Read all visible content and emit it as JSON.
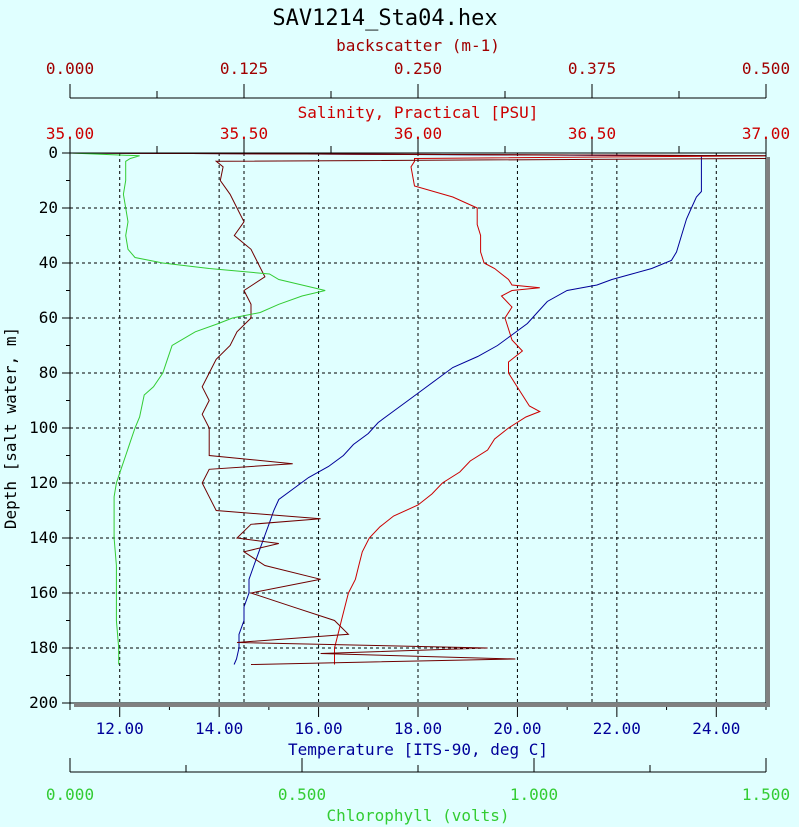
{
  "chart_data": {
    "type": "line",
    "title": "SAV1214_Sta04.hex",
    "axes": {
      "depth": {
        "label": "Depth [salt water, m]",
        "range": [
          0,
          200
        ],
        "ticks": [
          "0",
          "20",
          "40",
          "60",
          "80",
          "100",
          "120",
          "140",
          "160",
          "180",
          "200"
        ],
        "color": "#000000",
        "inverted": true
      },
      "backscatter": {
        "label": "backscatter (m-1)",
        "range": [
          0,
          0.5
        ],
        "ticks": [
          "0.000",
          "0.125",
          "0.250",
          "0.375",
          "0.500"
        ],
        "color": "#a00000",
        "position": "top-outer"
      },
      "salinity": {
        "label": "Salinity, Practical [PSU]",
        "range": [
          35,
          37
        ],
        "ticks": [
          "35.00",
          "35.50",
          "36.00",
          "36.50",
          "37.00"
        ],
        "color": "#cc0000",
        "position": "top-inner"
      },
      "temperature": {
        "label": "Temperature [ITS-90, deg C]",
        "range": [
          11,
          25
        ],
        "ticks": [
          "12.00",
          "14.00",
          "16.00",
          "18.00",
          "20.00",
          "22.00",
          "24.00"
        ],
        "color": "#000099",
        "position": "bottom-inner"
      },
      "chlorophyll": {
        "label": "Chlorophyll (volts)",
        "range": [
          0,
          1.5
        ],
        "ticks": [
          "0.000",
          "0.500",
          "1.000",
          "1.500"
        ],
        "color": "#33cc33",
        "position": "bottom-outer"
      }
    },
    "grid": true,
    "series": [
      {
        "axis": "temperature",
        "color": "#000099",
        "depth": [
          0,
          1,
          2,
          3,
          14,
          16,
          20,
          24,
          30,
          36,
          39,
          42,
          44,
          46,
          48,
          50,
          54,
          58,
          62,
          66,
          70,
          74,
          78,
          82,
          86,
          90,
          94,
          98,
          102,
          106,
          110,
          114,
          118,
          122,
          126,
          130,
          135,
          140,
          145,
          150,
          155,
          160,
          165,
          170,
          175,
          180,
          184,
          186
        ],
        "values": [
          11.1,
          23.7,
          23.7,
          23.7,
          23.7,
          23.6,
          23.5,
          23.4,
          23.3,
          23.2,
          23.1,
          22.7,
          22.3,
          21.9,
          21.6,
          21.0,
          20.6,
          20.4,
          20.2,
          19.9,
          19.6,
          19.2,
          18.7,
          18.4,
          18.1,
          17.8,
          17.5,
          17.2,
          17.0,
          16.7,
          16.5,
          16.2,
          15.8,
          15.5,
          15.2,
          15.1,
          15.0,
          14.9,
          14.8,
          14.7,
          14.6,
          14.6,
          14.5,
          14.5,
          14.4,
          14.4,
          14.35,
          14.3
        ]
      },
      {
        "axis": "salinity",
        "color": "#cc0000",
        "depth": [
          0,
          1,
          2,
          3,
          5,
          12,
          16,
          20,
          26,
          30,
          36,
          40,
          42,
          44,
          46,
          48,
          49,
          50,
          52,
          56,
          60,
          64,
          68,
          72,
          76,
          80,
          84,
          88,
          92,
          94,
          96,
          100,
          104,
          108,
          112,
          116,
          120,
          124,
          128,
          132,
          136,
          140,
          145,
          150,
          155,
          160,
          165,
          170,
          175,
          180,
          184,
          186
        ],
        "values": [
          35.0,
          37.0,
          35.99,
          35.99,
          35.98,
          35.99,
          36.1,
          36.17,
          36.17,
          36.18,
          36.18,
          36.19,
          36.22,
          36.24,
          36.26,
          36.27,
          36.35,
          36.27,
          36.24,
          36.27,
          36.25,
          36.26,
          36.27,
          36.3,
          36.26,
          36.26,
          36.28,
          36.3,
          36.32,
          36.35,
          36.31,
          36.26,
          36.22,
          36.2,
          36.15,
          36.12,
          36.07,
          36.04,
          36.0,
          35.93,
          35.89,
          35.86,
          35.84,
          35.83,
          35.82,
          35.8,
          35.79,
          35.78,
          35.77,
          35.76,
          35.76,
          35.76
        ]
      },
      {
        "axis": "backscatter",
        "color": "#700000",
        "depth": [
          0,
          1,
          2,
          3,
          5,
          10,
          15,
          20,
          25,
          30,
          35,
          40,
          45,
          50,
          55,
          60,
          65,
          70,
          75,
          80,
          85,
          90,
          95,
          100,
          105,
          110,
          113,
          115,
          120,
          125,
          130,
          133,
          135,
          140,
          142,
          145,
          150,
          155,
          160,
          165,
          170,
          175,
          178,
          180,
          182,
          184,
          186
        ],
        "values": [
          0.0,
          0.5,
          0.5,
          0.105,
          0.11,
          0.108,
          0.115,
          0.12,
          0.125,
          0.118,
          0.13,
          0.135,
          0.14,
          0.125,
          0.13,
          0.13,
          0.12,
          0.115,
          0.105,
          0.1,
          0.095,
          0.1,
          0.095,
          0.1,
          0.1,
          0.1,
          0.16,
          0.1,
          0.095,
          0.1,
          0.105,
          0.18,
          0.13,
          0.12,
          0.15,
          0.125,
          0.14,
          0.18,
          0.13,
          0.16,
          0.19,
          0.2,
          0.12,
          0.3,
          0.18,
          0.32,
          0.13
        ]
      },
      {
        "axis": "chlorophyll",
        "color": "#33cc33",
        "depth": [
          0,
          1,
          2,
          3,
          6,
          10,
          15,
          20,
          25,
          30,
          35,
          38,
          40,
          42,
          44,
          46,
          48,
          50,
          52,
          55,
          58,
          60,
          62,
          65,
          70,
          75,
          80,
          85,
          88,
          92,
          96,
          100,
          105,
          110,
          115,
          120,
          125,
          130,
          140,
          150,
          160,
          170,
          180,
          186
        ],
        "values": [
          0.0,
          0.15,
          0.13,
          0.12,
          0.12,
          0.12,
          0.115,
          0.12,
          0.125,
          0.12,
          0.125,
          0.14,
          0.2,
          0.3,
          0.43,
          0.45,
          0.5,
          0.55,
          0.5,
          0.45,
          0.41,
          0.35,
          0.32,
          0.27,
          0.22,
          0.21,
          0.2,
          0.18,
          0.16,
          0.155,
          0.15,
          0.14,
          0.13,
          0.12,
          0.11,
          0.1,
          0.095,
          0.095,
          0.095,
          0.1,
          0.1,
          0.1,
          0.105,
          0.105
        ]
      }
    ]
  }
}
